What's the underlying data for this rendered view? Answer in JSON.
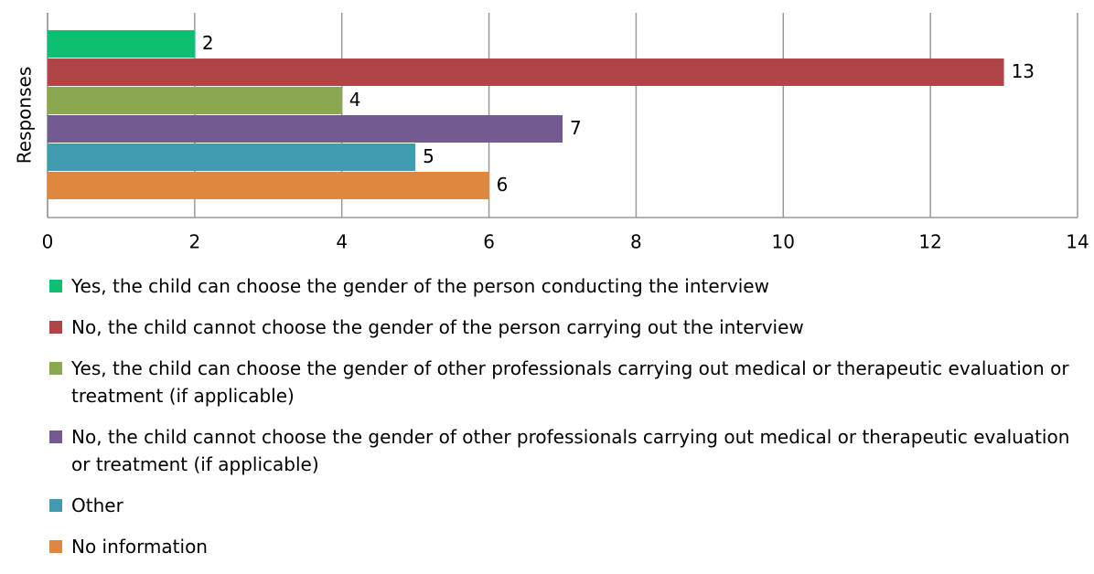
{
  "chart_data": {
    "type": "bar",
    "orientation": "horizontal",
    "categories": [
      "Responses"
    ],
    "series": [
      {
        "name": "Yes, the child can choose the gender of the person conducting the interview",
        "color": "#0dbf70",
        "values": [
          2
        ]
      },
      {
        "name": "No, the child cannot choose the gender of the person carrying out the interview",
        "color": "#b04547",
        "values": [
          13
        ]
      },
      {
        "name": "Yes, the child can choose the gender of other professionals carrying out medical or therapeutic evaluation or treatment (if applicable)",
        "color": "#8aa84f",
        "values": [
          4
        ]
      },
      {
        "name": "No, the child cannot choose the gender of other professionals carrying out medical or therapeutic evaluation or treatment (if applicable)",
        "color": "#735a91",
        "values": [
          7
        ]
      },
      {
        "name": "Other",
        "color": "#3f9bb0",
        "values": [
          5
        ]
      },
      {
        "name": "No information",
        "color": "#e0873f",
        "values": [
          6
        ]
      }
    ],
    "xlim": [
      0,
      14
    ],
    "xticks": [
      0,
      2,
      4,
      6,
      8,
      10,
      12,
      14
    ],
    "grid": true,
    "legend": "bottom"
  }
}
